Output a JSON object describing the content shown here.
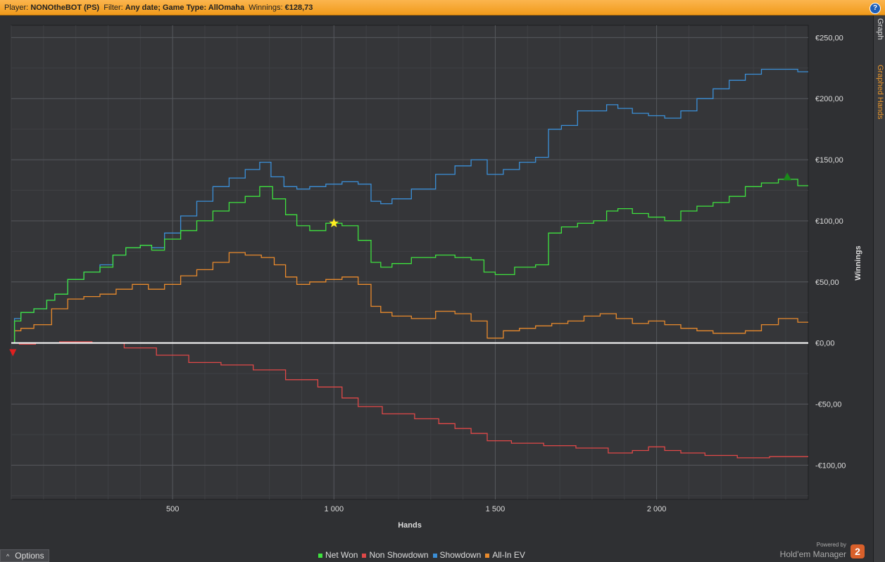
{
  "header": {
    "player_label": "Player:",
    "player": "NONOtheBOT (PS)",
    "filter_label": "Filter:",
    "filter": "Any date; Game Type: AllOmaha",
    "winnings_label": "Winnings:",
    "winnings": "€128,73",
    "help": "?"
  },
  "side_tabs": {
    "graph": "Graph",
    "graphed_hands": "Graphed Hands"
  },
  "footer": {
    "options": "Options",
    "powered_by": "Powered by",
    "brand": "Hold'em Manager",
    "logo": "2"
  },
  "colors": {
    "net_won": "#3ee23e",
    "non_showdown": "#e04848",
    "showdown": "#3b8fd8",
    "all_in_ev": "#e98a2c",
    "background": "#2f3033",
    "header": "#f5a623"
  },
  "chart_data": {
    "type": "line",
    "xlabel": "Hands",
    "ylabel": "Winnings",
    "xlim": [
      0,
      2470
    ],
    "ylim": [
      -128,
      260
    ],
    "x_ticks": [
      500,
      1000,
      1500,
      2000
    ],
    "x_tick_labels": [
      "500",
      "1 000",
      "1 500",
      "2 000"
    ],
    "y_ticks": [
      250,
      200,
      150,
      100,
      50,
      0,
      -50,
      -100
    ],
    "y_tick_labels": [
      "€250,00",
      "€200,00",
      "€150,00",
      "€100,00",
      "€50,00",
      "€0,00",
      "-€50,00",
      "-€100,00"
    ],
    "grid": true,
    "legend_position": "bottom",
    "markers": [
      {
        "type": "min",
        "x": 5,
        "y": -8,
        "color": "#e02020"
      },
      {
        "type": "star",
        "x": 1000,
        "y": 98,
        "color": "#ffee22"
      },
      {
        "type": "max",
        "x": 2405,
        "y": 136,
        "color": "#1a8a1a"
      }
    ],
    "series": [
      {
        "name": "Net Won",
        "color": "#3ee23e",
        "points": [
          [
            0,
            0
          ],
          [
            20,
            18
          ],
          [
            40,
            25
          ],
          [
            100,
            28
          ],
          [
            120,
            35
          ],
          [
            150,
            40
          ],
          [
            200,
            52
          ],
          [
            250,
            58
          ],
          [
            300,
            62
          ],
          [
            330,
            72
          ],
          [
            380,
            78
          ],
          [
            420,
            80
          ],
          [
            450,
            76
          ],
          [
            500,
            85
          ],
          [
            550,
            92
          ],
          [
            600,
            100
          ],
          [
            650,
            108
          ],
          [
            700,
            115
          ],
          [
            750,
            120
          ],
          [
            790,
            128
          ],
          [
            830,
            118
          ],
          [
            870,
            105
          ],
          [
            900,
            96
          ],
          [
            950,
            92
          ],
          [
            1000,
            98
          ],
          [
            1050,
            96
          ],
          [
            1100,
            84
          ],
          [
            1130,
            66
          ],
          [
            1160,
            62
          ],
          [
            1200,
            65
          ],
          [
            1280,
            70
          ],
          [
            1350,
            72
          ],
          [
            1400,
            70
          ],
          [
            1450,
            68
          ],
          [
            1480,
            58
          ],
          [
            1520,
            56
          ],
          [
            1600,
            62
          ],
          [
            1650,
            64
          ],
          [
            1680,
            90
          ],
          [
            1730,
            95
          ],
          [
            1780,
            98
          ],
          [
            1830,
            100
          ],
          [
            1860,
            108
          ],
          [
            1900,
            110
          ],
          [
            1950,
            106
          ],
          [
            2000,
            103
          ],
          [
            2050,
            100
          ],
          [
            2100,
            108
          ],
          [
            2150,
            112
          ],
          [
            2200,
            115
          ],
          [
            2250,
            120
          ],
          [
            2300,
            128
          ],
          [
            2350,
            131
          ],
          [
            2405,
            134
          ],
          [
            2470,
            128.73
          ]
        ]
      },
      {
        "name": "Non Showdown",
        "color": "#e04848",
        "points": [
          [
            0,
            0
          ],
          [
            50,
            -1
          ],
          [
            100,
            0
          ],
          [
            200,
            1
          ],
          [
            300,
            0
          ],
          [
            400,
            -4
          ],
          [
            500,
            -10
          ],
          [
            600,
            -16
          ],
          [
            700,
            -18
          ],
          [
            800,
            -22
          ],
          [
            900,
            -30
          ],
          [
            1000,
            -36
          ],
          [
            1050,
            -45
          ],
          [
            1100,
            -52
          ],
          [
            1200,
            -58
          ],
          [
            1300,
            -62
          ],
          [
            1350,
            -66
          ],
          [
            1400,
            -70
          ],
          [
            1450,
            -74
          ],
          [
            1500,
            -80
          ],
          [
            1600,
            -82
          ],
          [
            1700,
            -84
          ],
          [
            1800,
            -86
          ],
          [
            1900,
            -90
          ],
          [
            1950,
            -88
          ],
          [
            2000,
            -85
          ],
          [
            2050,
            -88
          ],
          [
            2100,
            -90
          ],
          [
            2200,
            -92
          ],
          [
            2300,
            -94
          ],
          [
            2400,
            -93
          ],
          [
            2470,
            -93
          ]
        ]
      },
      {
        "name": "Showdown",
        "color": "#3b8fd8",
        "points": [
          [
            0,
            0
          ],
          [
            20,
            20
          ],
          [
            40,
            25
          ],
          [
            100,
            28
          ],
          [
            120,
            35
          ],
          [
            150,
            40
          ],
          [
            200,
            52
          ],
          [
            250,
            58
          ],
          [
            300,
            64
          ],
          [
            330,
            72
          ],
          [
            380,
            78
          ],
          [
            420,
            80
          ],
          [
            450,
            78
          ],
          [
            500,
            90
          ],
          [
            550,
            104
          ],
          [
            600,
            116
          ],
          [
            650,
            128
          ],
          [
            700,
            135
          ],
          [
            750,
            142
          ],
          [
            790,
            148
          ],
          [
            820,
            136
          ],
          [
            870,
            128
          ],
          [
            900,
            126
          ],
          [
            950,
            128
          ],
          [
            1000,
            130
          ],
          [
            1050,
            132
          ],
          [
            1100,
            130
          ],
          [
            1130,
            116
          ],
          [
            1160,
            114
          ],
          [
            1200,
            118
          ],
          [
            1280,
            126
          ],
          [
            1350,
            138
          ],
          [
            1400,
            145
          ],
          [
            1450,
            150
          ],
          [
            1500,
            138
          ],
          [
            1550,
            142
          ],
          [
            1600,
            148
          ],
          [
            1650,
            152
          ],
          [
            1680,
            175
          ],
          [
            1730,
            178
          ],
          [
            1780,
            190
          ],
          [
            1830,
            190
          ],
          [
            1860,
            195
          ],
          [
            1900,
            192
          ],
          [
            1950,
            188
          ],
          [
            2000,
            186
          ],
          [
            2050,
            184
          ],
          [
            2100,
            190
          ],
          [
            2150,
            200
          ],
          [
            2200,
            208
          ],
          [
            2250,
            215
          ],
          [
            2300,
            220
          ],
          [
            2350,
            224
          ],
          [
            2405,
            224
          ],
          [
            2470,
            222
          ]
        ]
      },
      {
        "name": "All-In EV",
        "color": "#e98a2c",
        "points": [
          [
            0,
            0
          ],
          [
            20,
            10
          ],
          [
            40,
            12
          ],
          [
            100,
            15
          ],
          [
            150,
            28
          ],
          [
            200,
            36
          ],
          [
            250,
            38
          ],
          [
            300,
            40
          ],
          [
            350,
            44
          ],
          [
            400,
            48
          ],
          [
            450,
            44
          ],
          [
            500,
            48
          ],
          [
            550,
            55
          ],
          [
            600,
            60
          ],
          [
            650,
            66
          ],
          [
            700,
            74
          ],
          [
            750,
            72
          ],
          [
            800,
            70
          ],
          [
            830,
            64
          ],
          [
            870,
            54
          ],
          [
            900,
            48
          ],
          [
            950,
            50
          ],
          [
            1000,
            52
          ],
          [
            1050,
            54
          ],
          [
            1100,
            48
          ],
          [
            1130,
            30
          ],
          [
            1160,
            25
          ],
          [
            1200,
            22
          ],
          [
            1280,
            20
          ],
          [
            1350,
            26
          ],
          [
            1400,
            24
          ],
          [
            1450,
            18
          ],
          [
            1500,
            4
          ],
          [
            1550,
            10
          ],
          [
            1600,
            12
          ],
          [
            1650,
            14
          ],
          [
            1700,
            16
          ],
          [
            1750,
            18
          ],
          [
            1800,
            22
          ],
          [
            1850,
            24
          ],
          [
            1900,
            20
          ],
          [
            1950,
            16
          ],
          [
            2000,
            18
          ],
          [
            2050,
            15
          ],
          [
            2100,
            12
          ],
          [
            2150,
            10
          ],
          [
            2200,
            8
          ],
          [
            2250,
            8
          ],
          [
            2300,
            10
          ],
          [
            2350,
            15
          ],
          [
            2405,
            20
          ],
          [
            2470,
            17
          ]
        ]
      }
    ]
  }
}
